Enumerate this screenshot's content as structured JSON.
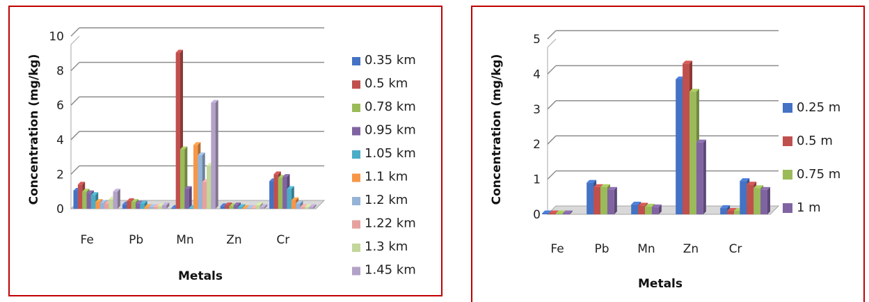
{
  "chart_data": [
    {
      "type": "bar",
      "title": "",
      "xlabel": "Metals",
      "ylabel": "Concentration (mg/kg)",
      "ylim": [
        0,
        10
      ],
      "yticks": [
        0,
        2,
        4,
        6,
        8,
        10
      ],
      "grid": true,
      "legend_position": "right",
      "categories": [
        "Fe",
        "Pb",
        "Mn",
        "Zn",
        "Cr"
      ],
      "series": [
        {
          "name": "0.35 km",
          "color": "#4472c4",
          "values": [
            1.05,
            0.25,
            0.05,
            0.15,
            1.6
          ]
        },
        {
          "name": "0.5 km",
          "color": "#c0504d",
          "values": [
            1.4,
            0.45,
            9.05,
            0.2,
            2.0
          ]
        },
        {
          "name": "0.78 km",
          "color": "#9bbb59",
          "values": [
            1.0,
            0.4,
            3.45,
            0.15,
            1.8
          ]
        },
        {
          "name": "0.95 km",
          "color": "#8064a2",
          "values": [
            0.9,
            0.3,
            1.15,
            0.2,
            1.85
          ]
        },
        {
          "name": "1.05 km",
          "color": "#4bacc6",
          "values": [
            0.8,
            0.3,
            0.05,
            0.1,
            1.15
          ]
        },
        {
          "name": "1.1 km",
          "color": "#f79646",
          "values": [
            0.4,
            0.1,
            3.7,
            0.05,
            0.5
          ]
        },
        {
          "name": "1.2 km",
          "color": "#95b3d7",
          "values": [
            0.35,
            0.1,
            3.1,
            0.05,
            0.3
          ]
        },
        {
          "name": "1.22 km",
          "color": "#e6a19e",
          "values": [
            0.3,
            0.1,
            1.55,
            0.05,
            0.1
          ]
        },
        {
          "name": "1.3 km",
          "color": "#c3d69b",
          "values": [
            0.55,
            0.15,
            2.5,
            0.2,
            0.1
          ]
        },
        {
          "name": "1.45 km",
          "color": "#b3a2c7",
          "values": [
            1.0,
            0.2,
            6.15,
            0.1,
            0.1
          ]
        }
      ]
    },
    {
      "type": "bar",
      "title": "",
      "xlabel": "Metals",
      "ylabel": "Concentration (mg/kg)",
      "ylim": [
        0,
        5
      ],
      "yticks": [
        0,
        1,
        2,
        3,
        4,
        5
      ],
      "grid": true,
      "legend_position": "right",
      "categories": [
        "Fe",
        "Pb",
        "Mn",
        "Zn",
        "Cr"
      ],
      "series": [
        {
          "name": "0.25 m",
          "color": "#4472c4",
          "values": [
            0.03,
            0.9,
            0.28,
            3.85,
            0.18
          ]
        },
        {
          "name": "0.5 m",
          "color": "#c0504d",
          "values": [
            0.03,
            0.78,
            0.25,
            4.3,
            0.1
          ]
        },
        {
          "name": "0.75 m",
          "color": "#9bbb59",
          "values": [
            0.03,
            0.78,
            0.22,
            3.5,
            0.1
          ]
        },
        {
          "name": "1 m",
          "color": "#8064a2",
          "values": [
            0.03,
            0.7,
            0.2,
            2.05,
            0.18
          ]
        }
      ],
      "extra_group_values": [
        0.95,
        0.85,
        0.75,
        0.7
      ]
    }
  ]
}
